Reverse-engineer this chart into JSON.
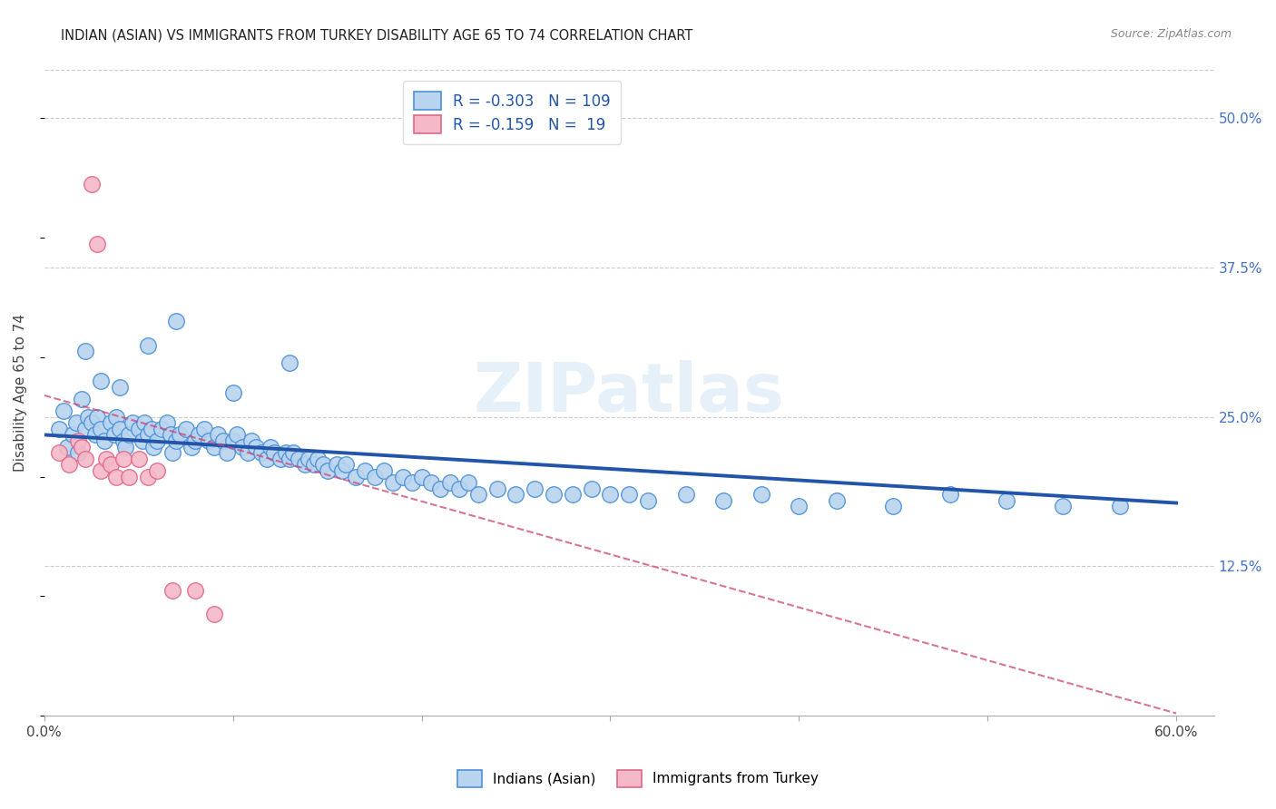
{
  "title": "INDIAN (ASIAN) VS IMMIGRANTS FROM TURKEY DISABILITY AGE 65 TO 74 CORRELATION CHART",
  "source": "Source: ZipAtlas.com",
  "ylabel": "Disability Age 65 to 74",
  "xlim": [
    0.0,
    0.62
  ],
  "ylim": [
    0.0,
    0.54
  ],
  "ytick_labels_right": [
    "50.0%",
    "37.5%",
    "25.0%",
    "12.5%"
  ],
  "ytick_vals_right": [
    0.5,
    0.375,
    0.25,
    0.125
  ],
  "blue_R": -0.303,
  "blue_N": 109,
  "pink_R": -0.159,
  "pink_N": 19,
  "blue_color": "#b8d4ee",
  "blue_edge_color": "#4a90d9",
  "pink_color": "#f5b8c8",
  "pink_edge_color": "#e06888",
  "blue_line_color": "#2255aa",
  "pink_line_color": "#cc4477",
  "watermark": "ZIPatlas",
  "blue_trend_x0": 0.0,
  "blue_trend_x1": 0.6,
  "blue_trend_y0": 0.235,
  "blue_trend_y1": 0.178,
  "pink_trend_x0": 0.0,
  "pink_trend_x1": 0.6,
  "pink_trend_y0": 0.268,
  "pink_trend_y1": 0.002,
  "blue_scatter_x": [
    0.008,
    0.01,
    0.012,
    0.015,
    0.017,
    0.018,
    0.02,
    0.022,
    0.023,
    0.025,
    0.027,
    0.028,
    0.03,
    0.032,
    0.035,
    0.037,
    0.038,
    0.04,
    0.042,
    0.043,
    0.045,
    0.047,
    0.05,
    0.052,
    0.053,
    0.055,
    0.057,
    0.058,
    0.06,
    0.062,
    0.065,
    0.067,
    0.068,
    0.07,
    0.072,
    0.075,
    0.078,
    0.08,
    0.082,
    0.085,
    0.087,
    0.09,
    0.092,
    0.095,
    0.097,
    0.1,
    0.102,
    0.105,
    0.108,
    0.11,
    0.112,
    0.115,
    0.118,
    0.12,
    0.122,
    0.125,
    0.128,
    0.13,
    0.132,
    0.135,
    0.138,
    0.14,
    0.143,
    0.145,
    0.148,
    0.15,
    0.155,
    0.158,
    0.16,
    0.165,
    0.17,
    0.175,
    0.18,
    0.185,
    0.19,
    0.195,
    0.2,
    0.205,
    0.21,
    0.215,
    0.22,
    0.225,
    0.23,
    0.24,
    0.25,
    0.26,
    0.27,
    0.28,
    0.29,
    0.3,
    0.31,
    0.32,
    0.34,
    0.36,
    0.38,
    0.4,
    0.42,
    0.45,
    0.48,
    0.51,
    0.54,
    0.57,
    0.022,
    0.03,
    0.04,
    0.055,
    0.07,
    0.1,
    0.13
  ],
  "blue_scatter_y": [
    0.24,
    0.255,
    0.225,
    0.235,
    0.245,
    0.22,
    0.265,
    0.24,
    0.25,
    0.245,
    0.235,
    0.25,
    0.24,
    0.23,
    0.245,
    0.235,
    0.25,
    0.24,
    0.23,
    0.225,
    0.235,
    0.245,
    0.24,
    0.23,
    0.245,
    0.235,
    0.24,
    0.225,
    0.23,
    0.24,
    0.245,
    0.235,
    0.22,
    0.23,
    0.235,
    0.24,
    0.225,
    0.23,
    0.235,
    0.24,
    0.23,
    0.225,
    0.235,
    0.23,
    0.22,
    0.23,
    0.235,
    0.225,
    0.22,
    0.23,
    0.225,
    0.22,
    0.215,
    0.225,
    0.22,
    0.215,
    0.22,
    0.215,
    0.22,
    0.215,
    0.21,
    0.215,
    0.21,
    0.215,
    0.21,
    0.205,
    0.21,
    0.205,
    0.21,
    0.2,
    0.205,
    0.2,
    0.205,
    0.195,
    0.2,
    0.195,
    0.2,
    0.195,
    0.19,
    0.195,
    0.19,
    0.195,
    0.185,
    0.19,
    0.185,
    0.19,
    0.185,
    0.185,
    0.19,
    0.185,
    0.185,
    0.18,
    0.185,
    0.18,
    0.185,
    0.175,
    0.18,
    0.175,
    0.185,
    0.18,
    0.175,
    0.175,
    0.305,
    0.28,
    0.275,
    0.31,
    0.33,
    0.27,
    0.295
  ],
  "pink_scatter_x": [
    0.008,
    0.013,
    0.018,
    0.02,
    0.022,
    0.025,
    0.028,
    0.03,
    0.033,
    0.035,
    0.038,
    0.042,
    0.045,
    0.05,
    0.055,
    0.06,
    0.068,
    0.08,
    0.09
  ],
  "pink_scatter_y": [
    0.22,
    0.21,
    0.23,
    0.225,
    0.215,
    0.445,
    0.395,
    0.205,
    0.215,
    0.21,
    0.2,
    0.215,
    0.2,
    0.215,
    0.2,
    0.205,
    0.105,
    0.105,
    0.085
  ]
}
